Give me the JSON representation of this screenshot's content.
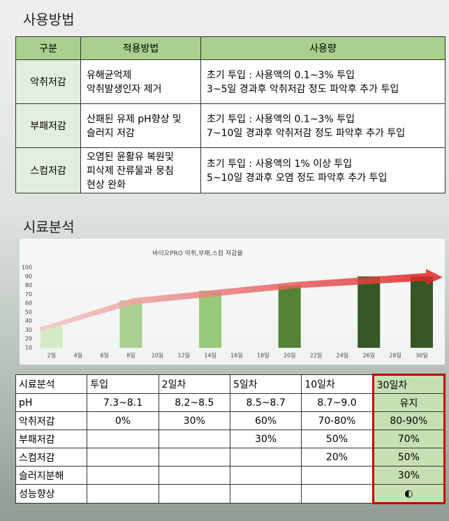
{
  "usage": {
    "title": "사용방법",
    "header": [
      "구분",
      "적용방법",
      "사용량"
    ],
    "rows": [
      {
        "name": "악취저감",
        "method": [
          "유해균억제",
          "악취발생인자 제거"
        ],
        "amount": [
          "초기 투입 : 사용액의 0.1~3% 투입",
          "3~5일 경과후 악취저감 정도 파악후 추가 투입"
        ]
      },
      {
        "name": "부패저감",
        "method": [
          "산패된 유제 pH향상 및",
          "슬러지 저감"
        ],
        "amount": [
          "초기 투입 : 사용액의 0.1~3% 투입",
          "7~10일 경과후 악취저감 정도 파악후 추가 투입"
        ]
      },
      {
        "name": "스컴저감",
        "method": [
          "오염된 윤활유 복원및",
          "피삭제 잔류물과 뭉침",
          "현상 완화"
        ],
        "amount": [
          "초기 투입 : 사용액의 1% 이상 투입",
          "5~10일 경과후 오염 정도 파악후 추가 투입"
        ]
      }
    ]
  },
  "analysis": {
    "title": "시료분석",
    "table": {
      "header": [
        "시료분석",
        "투입",
        "2일차",
        "5일차",
        "10일차",
        "30일차"
      ],
      "rows": [
        [
          "pH",
          "7.3~8.1",
          "8.2~8.5",
          "8.5~8.7",
          "8.7~9.0",
          "유지"
        ],
        [
          "악취저감",
          "0%",
          "30%",
          "60%",
          "70-80%",
          "80-90%"
        ],
        [
          "부패저감",
          null,
          null,
          "30%",
          "50%",
          "70%"
        ],
        [
          "스컴저감",
          null,
          null,
          null,
          "20%",
          "50%"
        ],
        [
          "슬러지분해",
          null,
          null,
          null,
          null,
          "30%"
        ],
        [
          "성능향상",
          null,
          null,
          null,
          null,
          "◐"
        ]
      ]
    }
  },
  "chart_data": {
    "type": "bar",
    "title": "바이오PRO 악취,부패,스컴 저감율",
    "categories": [
      "2일",
      "4일",
      "6일",
      "8일",
      "10일",
      "12일",
      "14일",
      "16일",
      "18일",
      "20일",
      "22일",
      "24일",
      "26일",
      "28일",
      "30일"
    ],
    "values": [
      34,
      null,
      null,
      63,
      null,
      null,
      74,
      null,
      null,
      80,
      null,
      null,
      90,
      null,
      90
    ],
    "colors": [
      "#d3eac4",
      null,
      null,
      "#a9d08e",
      null,
      null,
      "#98c879",
      null,
      null,
      "#548235",
      null,
      null,
      "#375623",
      null,
      "#375623"
    ],
    "ylim": [
      10,
      100
    ],
    "yticks": [
      10,
      20,
      30,
      40,
      50,
      60,
      70,
      80,
      90,
      100
    ],
    "grid": false
  }
}
